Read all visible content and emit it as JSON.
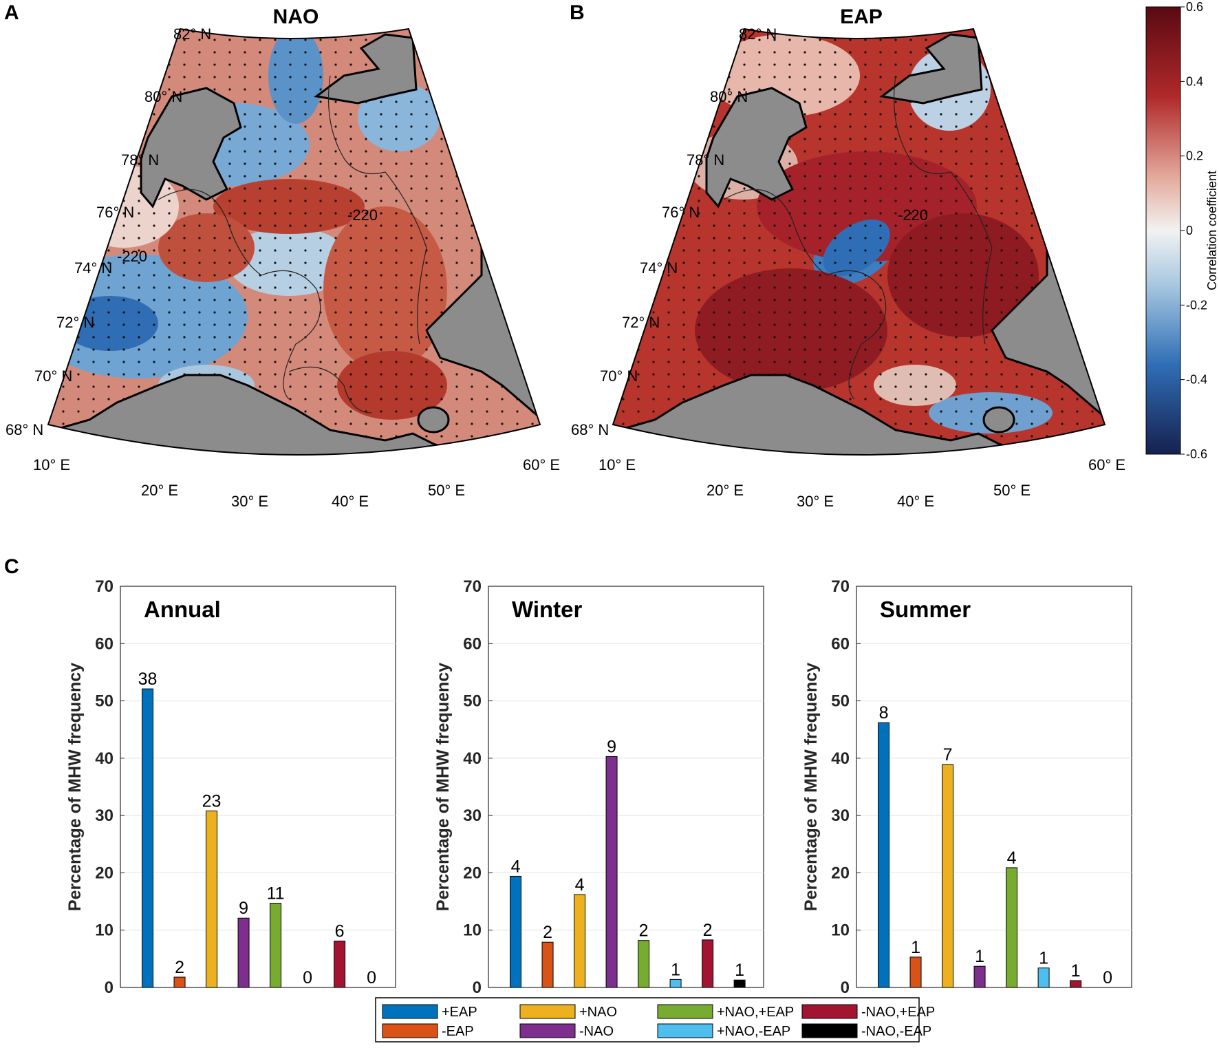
{
  "panels": {
    "a": {
      "letter": "A",
      "title": "NAO"
    },
    "b": {
      "letter": "B",
      "title": "EAP"
    },
    "c": {
      "letter": "C"
    }
  },
  "map_labels": {
    "lat": [
      "82° N",
      "80° N",
      "78° N",
      "76° N",
      "74° N",
      "72° N",
      "70° N",
      "68° N"
    ],
    "lon": [
      "10° E",
      "20° E",
      "30° E",
      "40° E",
      "50° E",
      "60° E"
    ],
    "contour": "-220"
  },
  "colorbar": {
    "label": "Correlation coefficient",
    "ticks": [
      "0.6",
      "0.4",
      "0.2",
      "0",
      "-0.2",
      "-0.4",
      "-0.6"
    ],
    "colors": {
      "max": "#5a0a12",
      "high": "#b0292a",
      "mid_high": "#e3a99a",
      "zero": "#f2f2f2",
      "mid_low": "#a8c8e0",
      "low": "#2f6eb5",
      "min": "#16214f"
    }
  },
  "chart_data": {
    "type": "bar",
    "ylabel": "Percentage of MHW frequency",
    "ylim": [
      0,
      70
    ],
    "yticks": [
      0,
      10,
      20,
      30,
      40,
      50,
      60,
      70
    ],
    "categories": [
      "+EAP",
      "-EAP",
      "+NAO",
      "-NAO",
      "+NAO,+EAP",
      "+NAO,-EAP",
      "-NAO,+EAP",
      "-NAO,-EAP"
    ],
    "category_colors": [
      "#0072BD",
      "#D95319",
      "#EDB120",
      "#7E2F8E",
      "#77AC30",
      "#4DBEEE",
      "#A2142F",
      "#000000"
    ],
    "subplots": [
      {
        "title": "Annual",
        "values": [
          52.1,
          1.8,
          30.8,
          12.1,
          14.7,
          0,
          8.1,
          0
        ],
        "counts": [
          "38",
          "2",
          "23",
          "9",
          "11",
          "0",
          "6",
          "0"
        ]
      },
      {
        "title": "Winter",
        "values": [
          19.4,
          7.9,
          16.2,
          40.3,
          8.2,
          1.4,
          8.3,
          1.3
        ],
        "counts": [
          "4",
          "2",
          "4",
          "9",
          "2",
          "1",
          "2",
          "1"
        ]
      },
      {
        "title": "Summer",
        "values": [
          46.2,
          5.3,
          38.9,
          3.7,
          20.9,
          3.4,
          1.2,
          0
        ],
        "counts": [
          "8",
          "1",
          "7",
          "1",
          "4",
          "1",
          "1",
          "0"
        ]
      }
    ]
  }
}
